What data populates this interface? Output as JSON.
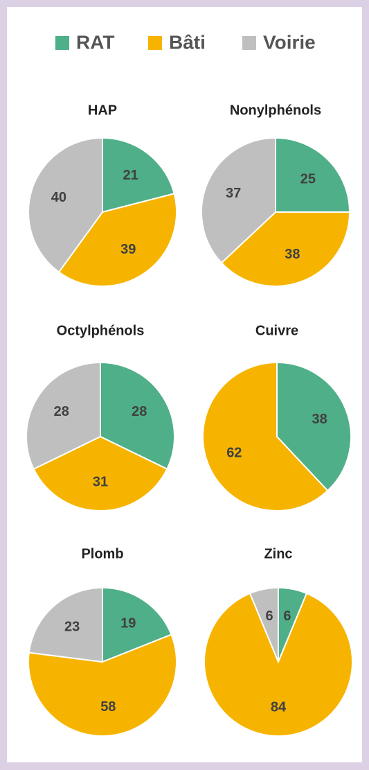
{
  "legend": {
    "names": [
      "RAT",
      "Bâti",
      "Voirie"
    ],
    "colors": [
      "#4faf88",
      "#f6b400",
      "#bfbfbf"
    ]
  },
  "chart_data": [
    {
      "type": "pie",
      "title": "HAP",
      "values": [
        21,
        39,
        40
      ]
    },
    {
      "type": "pie",
      "title": "Nonylphénols",
      "values": [
        25,
        38,
        37
      ]
    },
    {
      "type": "pie",
      "title": "Octylphénols",
      "values": [
        28,
        31,
        28
      ]
    },
    {
      "type": "pie",
      "title": "Cuivre",
      "values": [
        38,
        62,
        null
      ]
    },
    {
      "type": "pie",
      "title": "Plomb",
      "values": [
        19,
        58,
        23
      ]
    },
    {
      "type": "pie",
      "title": "Zinc",
      "values": [
        6,
        84,
        6
      ]
    }
  ]
}
